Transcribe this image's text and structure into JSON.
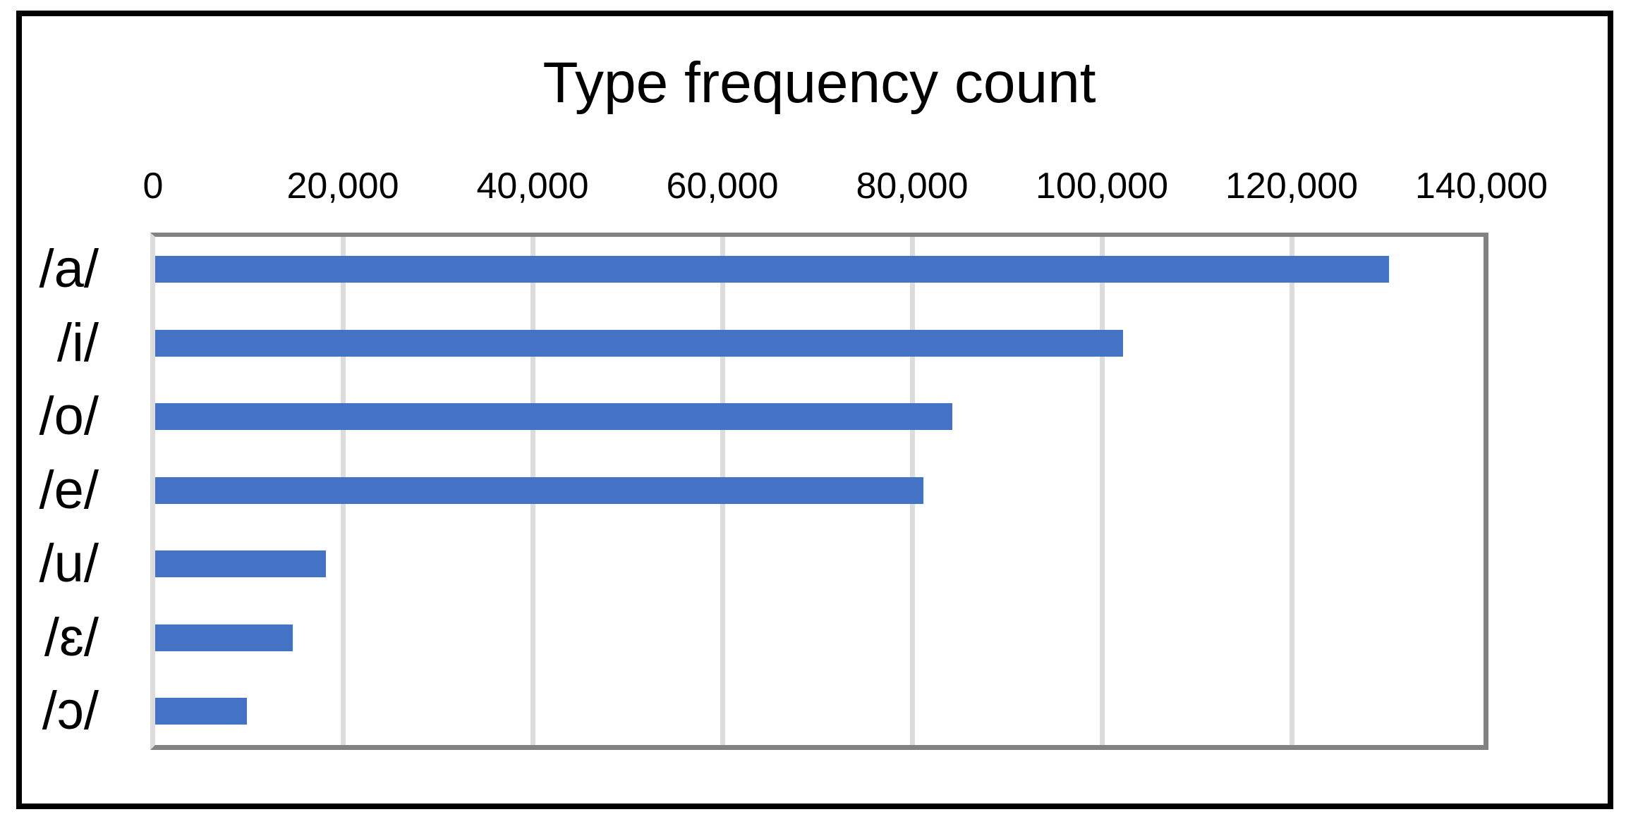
{
  "chart_data": {
    "type": "bar",
    "orientation": "horizontal",
    "title": "Type frequency count",
    "categories": [
      "/a/",
      "/i/",
      "/o/",
      "/e/",
      "/u/",
      "/ɛ/",
      "/ɔ/"
    ],
    "values": [
      130000,
      102000,
      84000,
      81000,
      18000,
      14500,
      9700
    ],
    "xlim": [
      0,
      140000
    ],
    "x_ticks": [
      0,
      20000,
      40000,
      60000,
      80000,
      100000,
      120000,
      140000
    ],
    "x_tick_labels": [
      "0",
      "20,000",
      "40,000",
      "60,000",
      "80,000",
      "100,000",
      "120,000",
      "140,000"
    ],
    "tick_position": "top",
    "grid": true,
    "legend": "none",
    "colors": {
      "bar": "#4472C4",
      "gridline": "#dcdcdc",
      "plot_border": "#828282",
      "outer_frame": "#000000",
      "text": "#000000",
      "background": "#ffffff"
    }
  }
}
